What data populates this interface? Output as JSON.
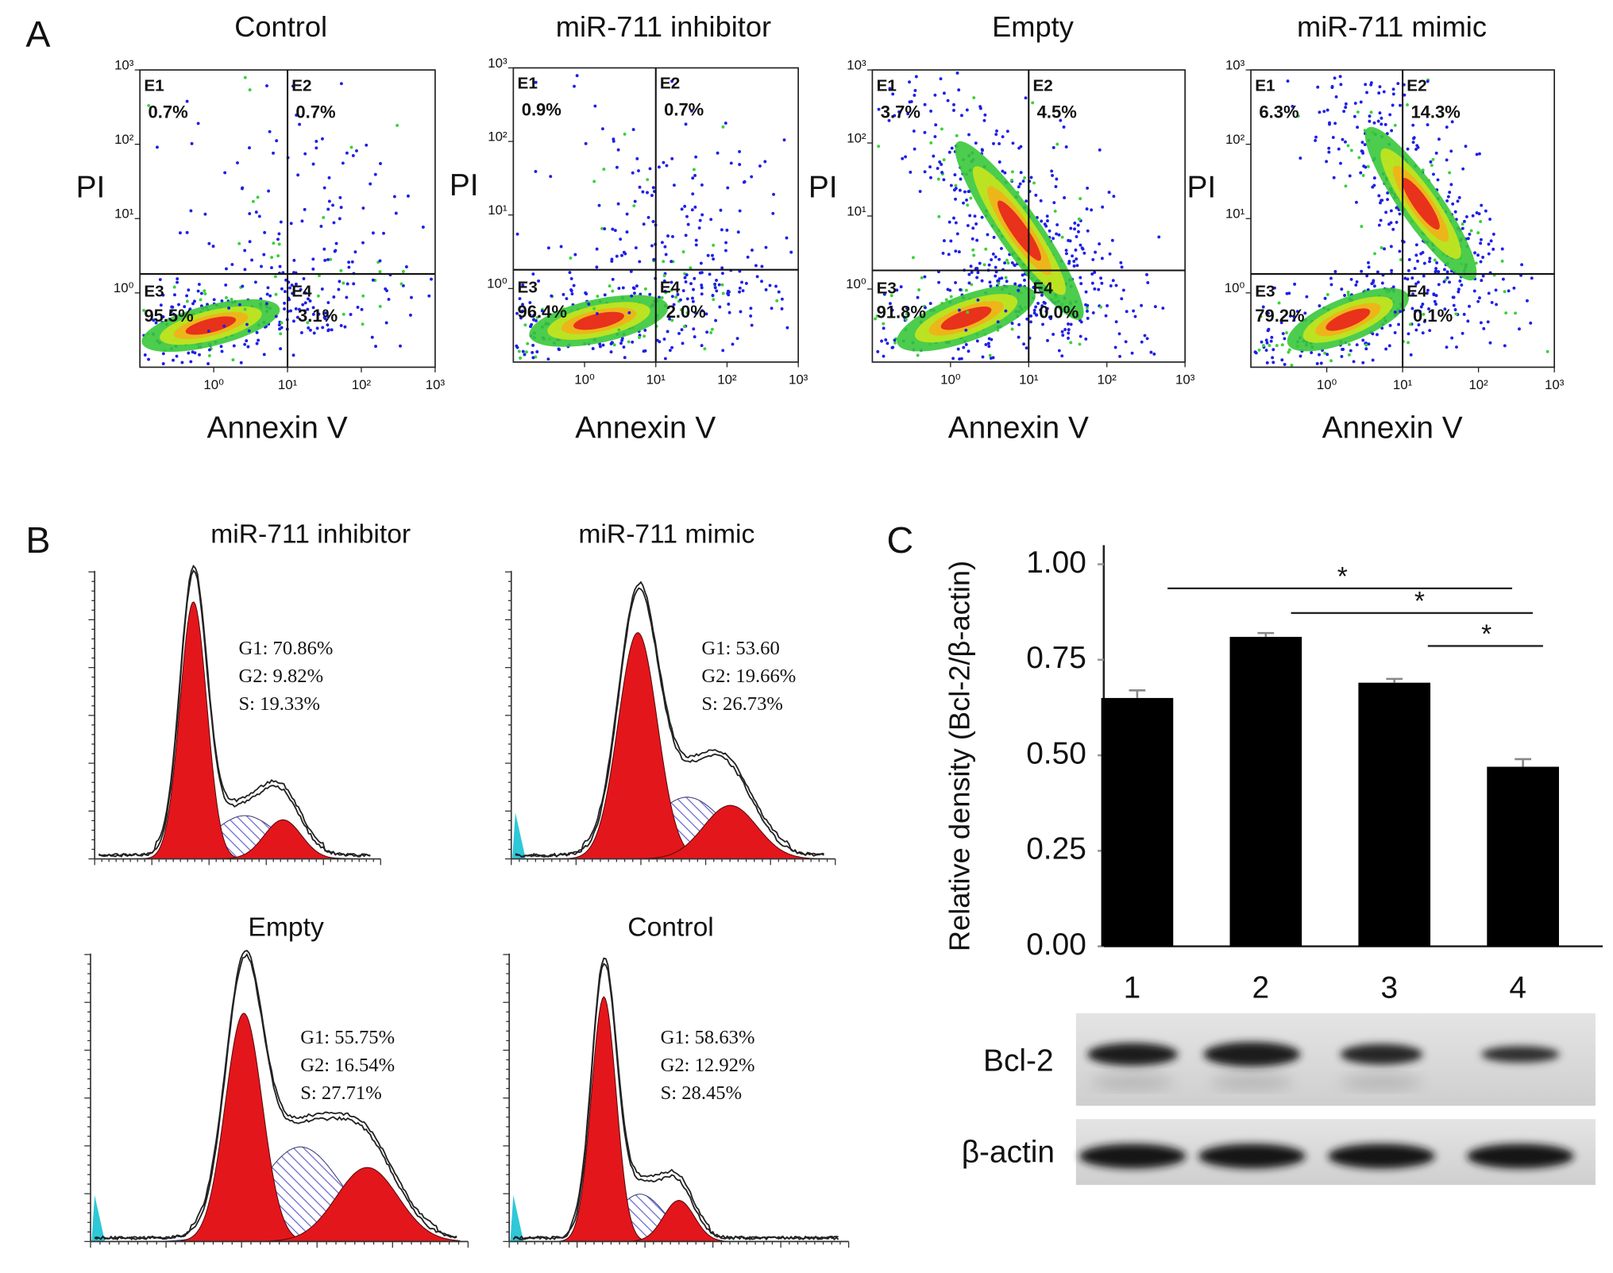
{
  "panel_labels": [
    "A",
    "B",
    "C"
  ],
  "chart_data": [
    {
      "type": "scatter",
      "title": "Control",
      "xlabel": "Annexin V",
      "ylabel": "PI",
      "log_scale": true,
      "xlim": [
        0.1,
        1000
      ],
      "ylim": [
        0.1,
        1000
      ],
      "xticks": [
        {
          "value": 1,
          "label": "10⁰"
        },
        {
          "value": 10,
          "label": "10¹"
        },
        {
          "value": 100,
          "label": "10²"
        },
        {
          "value": 1000,
          "label": "10³"
        }
      ],
      "yticks": [
        {
          "value": 1,
          "label": "10⁰"
        },
        {
          "value": 10,
          "label": "10¹"
        },
        {
          "value": 100,
          "label": "10²"
        },
        {
          "value": 1000,
          "label": "10³"
        }
      ],
      "gate": {
        "x": 10,
        "y": 1.8
      },
      "quadrants": [
        "E1",
        "E2",
        "E3",
        "E4"
      ],
      "values": [
        0.7,
        0.7,
        95.5,
        3.1
      ],
      "value_labels": [
        "0.7%",
        "0.7%",
        "95.5%",
        "3.1%"
      ]
    },
    {
      "type": "scatter",
      "title": "miR-711 inhibitor",
      "xlabel": "Annexin V",
      "ylabel": "PI",
      "log_scale": true,
      "xlim": [
        0.1,
        1000
      ],
      "ylim": [
        0.1,
        1000
      ],
      "xticks": [
        {
          "value": 1,
          "label": "10⁰"
        },
        {
          "value": 10,
          "label": "10¹"
        },
        {
          "value": 100,
          "label": "10²"
        },
        {
          "value": 1000,
          "label": "10³"
        }
      ],
      "yticks": [
        {
          "value": 1,
          "label": "10⁰"
        },
        {
          "value": 10,
          "label": "10¹"
        },
        {
          "value": 100,
          "label": "10²"
        },
        {
          "value": 1000,
          "label": "10³"
        }
      ],
      "gate": {
        "x": 10,
        "y": 1.8
      },
      "quadrants": [
        "E1",
        "E2",
        "E3",
        "E4"
      ],
      "values": [
        0.9,
        0.7,
        96.4,
        2.0
      ],
      "value_labels": [
        "0.9%",
        "0.7%",
        "96.4%",
        "2.0%"
      ]
    },
    {
      "type": "scatter",
      "title": "Empty",
      "xlabel": "Annexin V",
      "ylabel": "PI",
      "log_scale": true,
      "xlim": [
        0.1,
        1000
      ],
      "ylim": [
        0.1,
        1000
      ],
      "xticks": [
        {
          "value": 1,
          "label": "10⁰"
        },
        {
          "value": 10,
          "label": "10¹"
        },
        {
          "value": 100,
          "label": "10²"
        },
        {
          "value": 1000,
          "label": "10³"
        }
      ],
      "yticks": [
        {
          "value": 1,
          "label": "10⁰"
        },
        {
          "value": 10,
          "label": "10¹"
        },
        {
          "value": 100,
          "label": "10²"
        },
        {
          "value": 1000,
          "label": "10³"
        }
      ],
      "gate": {
        "x": 10,
        "y": 1.8
      },
      "quadrants": [
        "E1",
        "E2",
        "E3",
        "E4"
      ],
      "values": [
        3.7,
        4.5,
        91.8,
        0.0
      ],
      "value_labels": [
        "3.7%",
        "4.5%",
        "91.8%",
        "0.0%"
      ]
    },
    {
      "type": "scatter",
      "title": "miR-711 mimic",
      "xlabel": "Annexin V",
      "ylabel": "PI",
      "log_scale": true,
      "xlim": [
        0.1,
        1000
      ],
      "ylim": [
        0.1,
        1000
      ],
      "xticks": [
        {
          "value": 1,
          "label": "10⁰"
        },
        {
          "value": 10,
          "label": "10¹"
        },
        {
          "value": 100,
          "label": "10²"
        },
        {
          "value": 1000,
          "label": "10³"
        }
      ],
      "yticks": [
        {
          "value": 1,
          "label": "10⁰"
        },
        {
          "value": 10,
          "label": "10¹"
        },
        {
          "value": 100,
          "label": "10²"
        },
        {
          "value": 1000,
          "label": "10³"
        }
      ],
      "gate": {
        "x": 10,
        "y": 1.8
      },
      "quadrants": [
        "E1",
        "E2",
        "E3",
        "E4"
      ],
      "values": [
        6.3,
        14.3,
        79.2,
        0.1
      ],
      "value_labels": [
        "6.3%",
        "14.3%",
        "79.2%",
        "0.1%"
      ]
    },
    {
      "type": "density",
      "title": "miR-711 inhibitor",
      "values": [
        70.86,
        9.82,
        19.33
      ],
      "value_labels": [
        "G1: 70.86%",
        "G2: 9.82%",
        "S: 19.33%"
      ]
    },
    {
      "type": "density",
      "title": "miR-711 mimic",
      "values": [
        53.6,
        19.66,
        26.73
      ],
      "value_labels": [
        "G1: 53.60",
        "G2: 19.66%",
        "S: 26.73%"
      ]
    },
    {
      "type": "density",
      "title": "Empty",
      "values": [
        55.75,
        16.54,
        27.71
      ],
      "value_labels": [
        "G1: 55.75%",
        "G2: 16.54%",
        "S: 27.71%"
      ]
    },
    {
      "type": "density",
      "title": "Control",
      "values": [
        58.63,
        12.92,
        28.45
      ],
      "value_labels": [
        "G1: 58.63%",
        "G2: 12.92%",
        "S: 28.45%"
      ]
    },
    {
      "type": "bar",
      "ylabel": "Relative density (Bcl-2/β-actin)",
      "categories": [
        "1",
        "2",
        "3",
        "4"
      ],
      "values": [
        0.65,
        0.81,
        0.69,
        0.47
      ],
      "errors": [
        0.02,
        0.01,
        0.01,
        0.02
      ],
      "color": "#000000",
      "ylim": [
        0,
        1.05
      ],
      "yticks": [
        {
          "value": 0,
          "label": "0.00"
        },
        {
          "value": 0.25,
          "label": "0.25"
        },
        {
          "value": 0.5,
          "label": "0.50"
        },
        {
          "value": 0.75,
          "label": "0.75"
        },
        {
          "value": 1,
          "label": "1.00"
        }
      ],
      "significance": [
        "*",
        "*",
        "*"
      ]
    }
  ],
  "blot": {
    "rows": [
      "Bcl-2",
      "β-actin"
    ]
  }
}
